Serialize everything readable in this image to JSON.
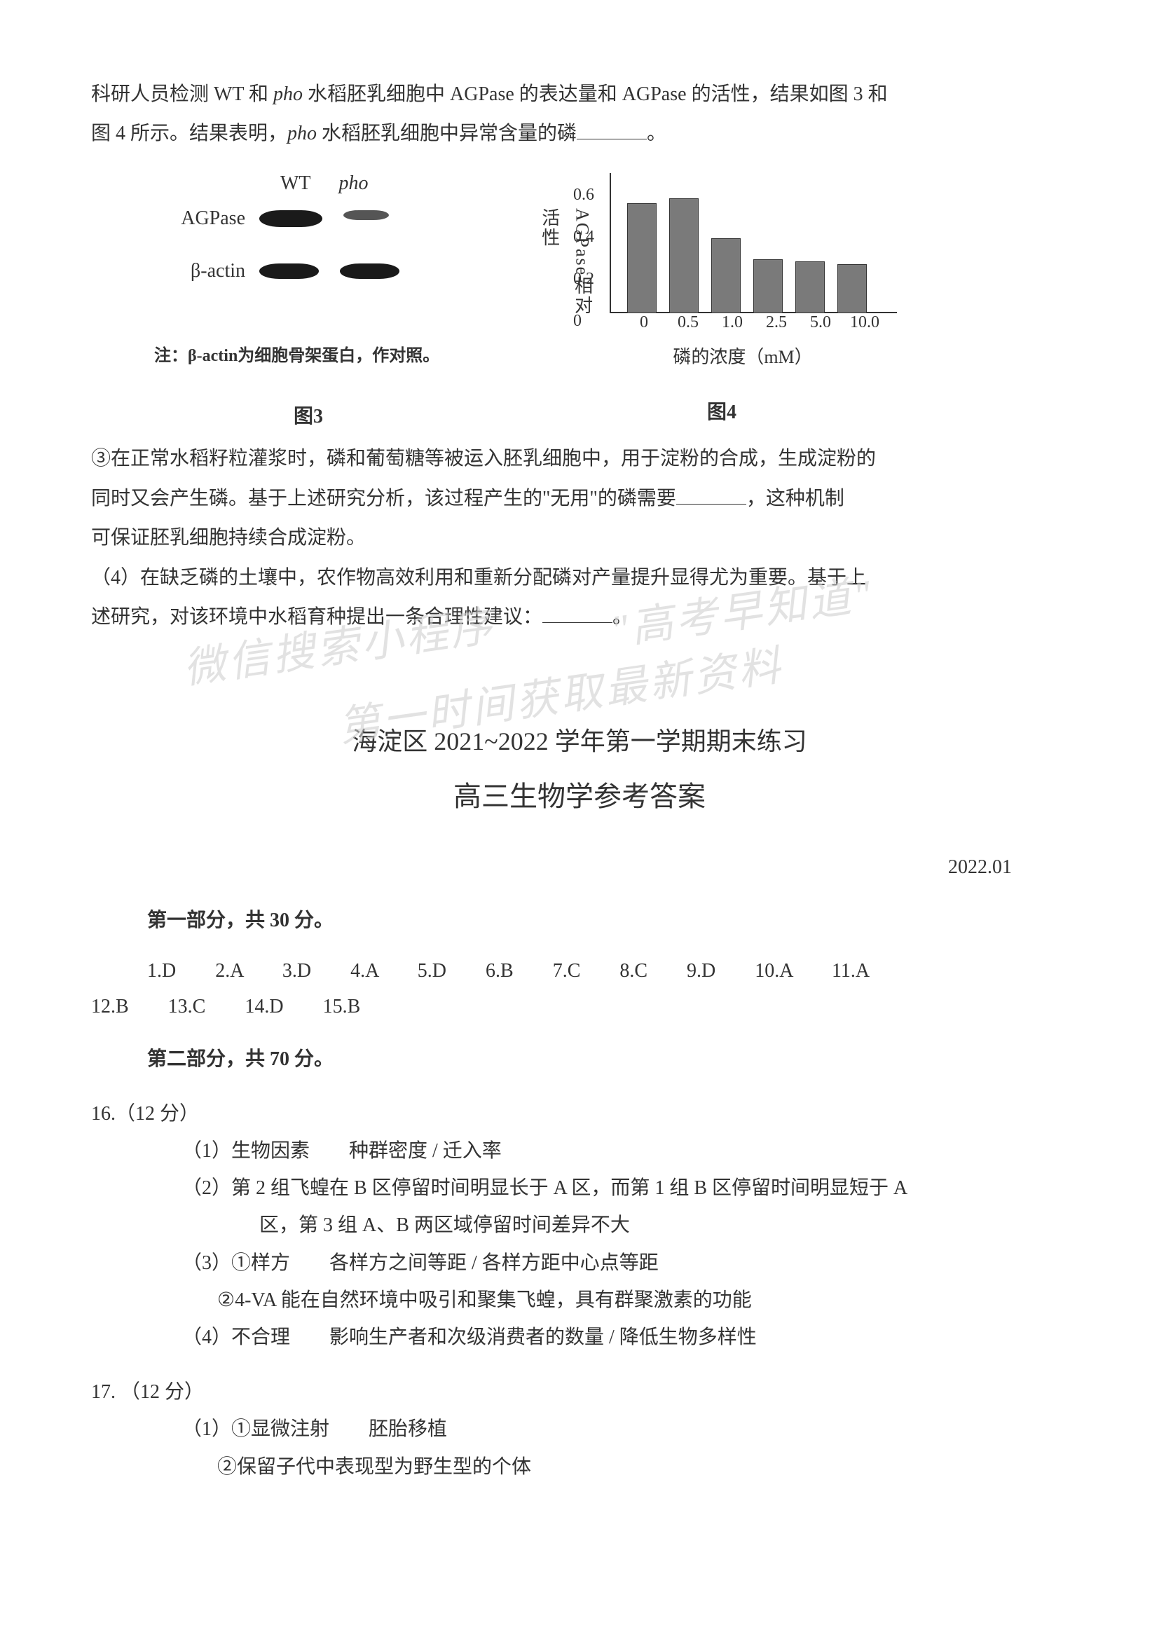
{
  "intro": {
    "line1_a": "科研人员检测 WT 和 ",
    "line1_pho": "pho",
    "line1_b": " 水稻胚乳细胞中 AGPase 的表达量和 AGPase 的活性，结果如图 3 和",
    "line2_a": "图 4 所示。结果表明，",
    "line2_pho": "pho",
    "line2_b": " 水稻胚乳细胞中异常含量的磷",
    "line2_c": "。"
  },
  "fig3": {
    "header_wt": "WT",
    "header_pho": "pho",
    "row1_label": "AGPase",
    "row2_label": "β-actin",
    "note": "注：β-actin为细胞骨架蛋白，作对照。",
    "caption": "图3"
  },
  "fig4": {
    "y_axis_label": "AGPase相对活性",
    "y_ticks": [
      "0",
      "0.2",
      "0.4",
      "0.6"
    ],
    "y_tick_positions": [
      200,
      140,
      80,
      20
    ],
    "x_labels": [
      "0",
      "0.5",
      "1.0",
      "2.5",
      "5.0",
      "10.0"
    ],
    "x_axis_label": "磷的浓度（mM）",
    "values": [
      0.47,
      0.49,
      0.32,
      0.23,
      0.22,
      0.21
    ],
    "ylim_max": 0.6,
    "bar_color": "#7a7a7a",
    "caption": "图4"
  },
  "body": {
    "para3_a": "③在正常水稻籽粒灌浆时，磷和葡萄糖等被运入胚乳细胞中，用于淀粉的合成，生成淀粉的",
    "para3_b": "同时又会产生磷。基于上述研究分析，该过程产生的\"无用\"的磷需要",
    "para3_c": "，这种机制",
    "para3_d": "可保证胚乳细胞持续合成淀粉。",
    "para4_a": "（4）在缺乏磷的土壤中，农作物高效利用和重新分配磷对产量提升显得尤为重要。基于上",
    "para4_b": "述研究，对该环境中水稻育种提出一条合理性建议：",
    "para4_c": "。"
  },
  "watermark": {
    "wm1": "微信搜索小程序",
    "wm2": "\"高考早知道\"",
    "wm3": "第一时间获取最新资料"
  },
  "answer": {
    "title": "海淀区 2021~2022 学年第一学期期末练习",
    "subtitle": "高三生物学参考答案",
    "date": "2022.01",
    "section1_header": "第一部分，共 30 分。",
    "mcq_row1": "1.D　　2.A　　3.D　　4.A　　5.D　　6.B　　7.C　　8.C　　9.D　　10.A　　11.A",
    "mcq_row2": "12.B　　13.C　　14.D　　15.B",
    "section2_header": "第二部分，共 70 分。"
  },
  "q16": {
    "number": "16.（12 分）",
    "s1": "（1）生物因素　　种群密度 / 迁入率",
    "s2a": "（2）第 2 组飞蝗在 B 区停留时间明显长于 A 区，而第 1 组 B 区停留时间明显短于 A",
    "s2b": "区，第 3 组 A、B 两区域停留时间差异不大",
    "s3a": "（3）①样方　　各样方之间等距 / 各样方距中心点等距",
    "s3b": "②4-VA 能在自然环境中吸引和聚集飞蝗，具有群聚激素的功能",
    "s4": "（4）不合理　　影响生产者和次级消费者的数量 / 降低生物多样性"
  },
  "q17": {
    "number": "17. （12 分）",
    "s1a": "（1）①显微注射　　胚胎移植",
    "s1b": "②保留子代中表现型为野生型的个体"
  }
}
